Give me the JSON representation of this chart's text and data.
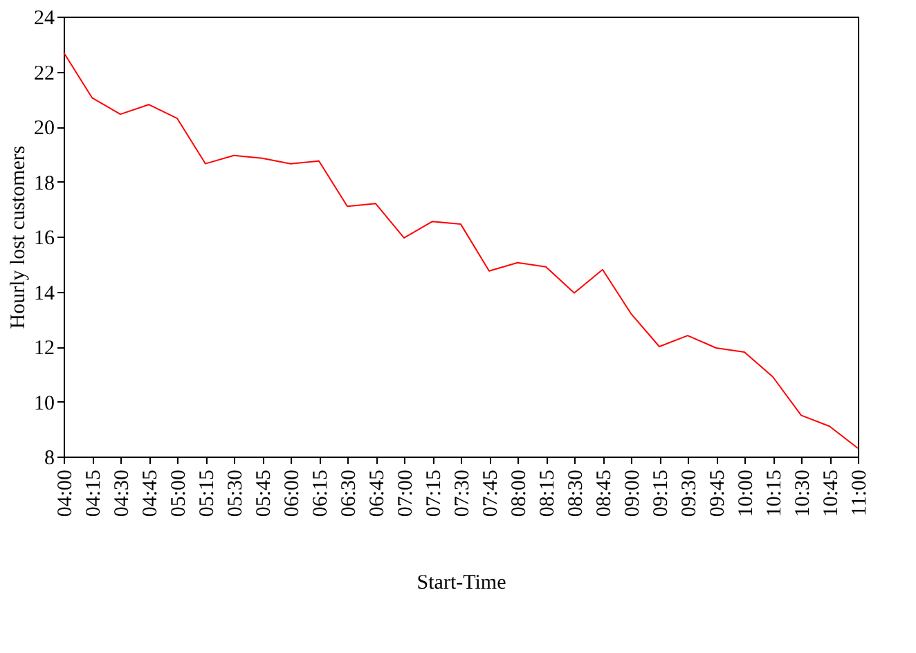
{
  "chart_data": {
    "type": "line",
    "xlabel": "Start-Time",
    "ylabel": "Hourly lost customers",
    "categories": [
      "04:00",
      "04:15",
      "04:30",
      "04:45",
      "05:00",
      "05:15",
      "05:30",
      "05:45",
      "06:00",
      "06:15",
      "06:30",
      "06:45",
      "07:00",
      "07:15",
      "07:30",
      "07:45",
      "08:00",
      "08:15",
      "08:30",
      "08:45",
      "09:00",
      "09:15",
      "09:30",
      "09:45",
      "10:00",
      "10:15",
      "10:30",
      "10:45",
      "11:00"
    ],
    "series": [
      {
        "color": "#ff0000",
        "values": [
          22.7,
          21.05,
          20.45,
          20.8,
          20.3,
          18.65,
          18.95,
          18.85,
          18.65,
          18.75,
          17.1,
          17.2,
          15.95,
          16.55,
          16.45,
          14.75,
          15.05,
          14.9,
          13.95,
          14.8,
          13.2,
          12.0,
          12.4,
          11.95,
          11.8,
          10.9,
          9.5,
          9.1,
          8.3
        ]
      }
    ],
    "ylim": [
      8,
      24
    ],
    "yticks": [
      8,
      10,
      12,
      14,
      16,
      18,
      20,
      22,
      24
    ],
    "grid": false,
    "legend": false,
    "marker": "none",
    "line_style": "solid"
  }
}
